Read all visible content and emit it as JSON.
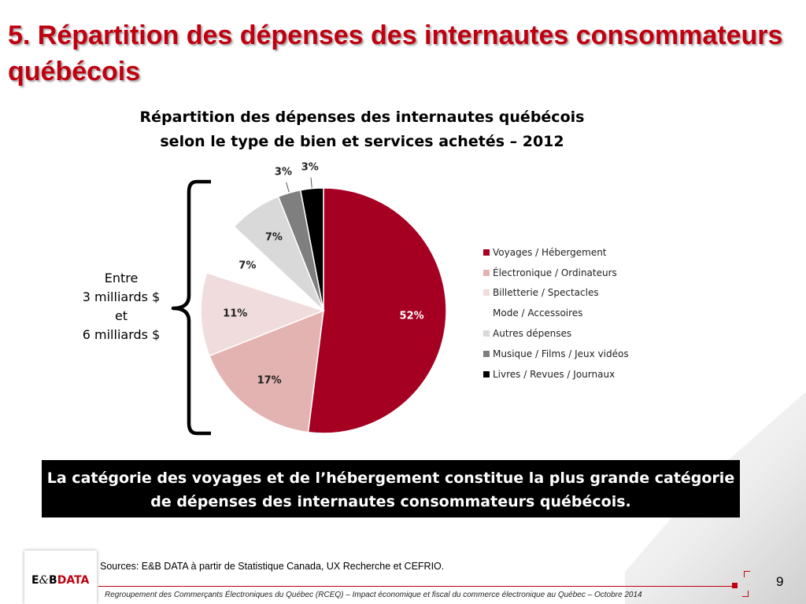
{
  "slide": {
    "title": "5. Répartition des dépenses des internautes consommateurs québécois",
    "brace_text": [
      "Entre",
      "3 milliards $",
      "et",
      "6 milliards $"
    ],
    "callout": [
      "La catégorie des voyages et de l’hébergement constitue la plus grande catégorie",
      "de dépenses des internautes consommateurs québécois."
    ],
    "sources": "Sources: E&B DATA à partir de Statistique Canada,  UX Recherche et CEFRIO.",
    "footer": "Regroupement des Commerçants Électroniques du Québec (RCEQ) – Impact économique et fiscal du commerce électronique au Québec – Octobre 2014",
    "page_number": "9",
    "logo": {
      "part1": "E",
      "amp": "&",
      "part2": "B",
      "part3": "DATA"
    }
  },
  "chart_data": {
    "type": "pie",
    "title": [
      "Répartition des dépenses des internautes québécois",
      "selon le type de bien et services achetés – 2012"
    ],
    "slices": [
      {
        "name": "Voyages / Hébergement",
        "value": 52,
        "label": "52%",
        "color": "#a50021"
      },
      {
        "name": "Électronique / Ordinateurs",
        "value": 17,
        "label": "17%",
        "color": "#e3b3b1"
      },
      {
        "name": "Billetterie / Spectacles",
        "value": 11,
        "label": "11%",
        "color": "#f1dcdd"
      },
      {
        "name": "Mode / Accessoires",
        "value": 7,
        "label": "7%",
        "color": "#ffffff"
      },
      {
        "name": "Autres dépenses",
        "value": 7,
        "label": "7%",
        "color": "#d9d9d9"
      },
      {
        "name": "Musique / Films  / Jeux vidéos",
        "value": 3,
        "label": "3%",
        "color": "#7f7f7f"
      },
      {
        "name": "Livres / Revues / Journaux",
        "value": 3,
        "label": "3%",
        "color": "#000000"
      }
    ],
    "legend_position": "right"
  }
}
